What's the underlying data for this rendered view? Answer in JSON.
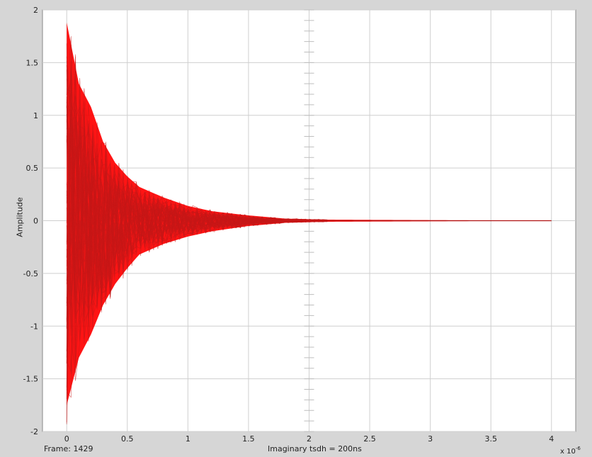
{
  "chart_data": {
    "type": "line",
    "title": "",
    "xlabel": "Imaginary tsdh = 200ns",
    "ylabel": "Amplitude",
    "x_scale_note": "x 10",
    "x_scale_exponent": "-6",
    "xlim": [
      -0.2,
      4.2
    ],
    "ylim": [
      -2,
      2
    ],
    "xticks": [
      0,
      0.5,
      1,
      1.5,
      2,
      2.5,
      3,
      3.5,
      4
    ],
    "xtick_labels": [
      "0",
      "0.5",
      "1",
      "1.5",
      "2",
      "2.5",
      "3",
      "3.5",
      "4"
    ],
    "yticks": [
      -2,
      -1.5,
      -1,
      -0.5,
      0,
      0.5,
      1,
      1.5,
      2
    ],
    "ytick_labels": [
      "-2",
      "-1.5",
      "-1",
      "-0.5",
      "0",
      "0.5",
      "1",
      "1.5",
      "2"
    ],
    "grid": true,
    "line_color": "#ff0000",
    "envelope": {
      "x": [
        0,
        0.1,
        0.2,
        0.3,
        0.4,
        0.5,
        0.6,
        0.8,
        1.0,
        1.2,
        1.5,
        1.8,
        2.15,
        4.0
      ],
      "upper": [
        1.88,
        1.3,
        1.08,
        0.75,
        0.55,
        0.42,
        0.32,
        0.22,
        0.14,
        0.09,
        0.05,
        0.02,
        0.01,
        0.0
      ],
      "lower": [
        -1.75,
        -1.3,
        -1.08,
        -0.8,
        -0.6,
        -0.45,
        -0.32,
        -0.22,
        -0.15,
        -0.1,
        -0.05,
        -0.02,
        -0.01,
        0.0
      ]
    },
    "trace_count_note": "many overlapping traces",
    "frame_label": "Frame: 1429"
  }
}
